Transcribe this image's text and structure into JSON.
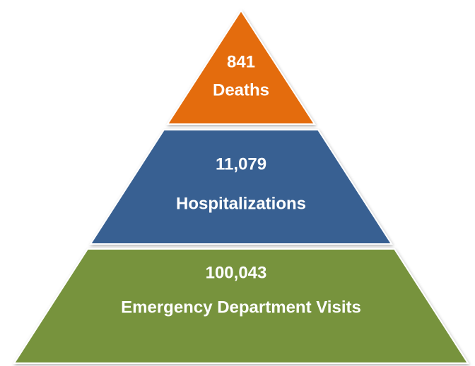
{
  "levels": [
    {
      "value": "841",
      "label": "Deaths"
    },
    {
      "value": "11,079",
      "label": "Hospitalizations"
    },
    {
      "value": "100,043",
      "label": "Emergency Department Visits"
    }
  ]
}
